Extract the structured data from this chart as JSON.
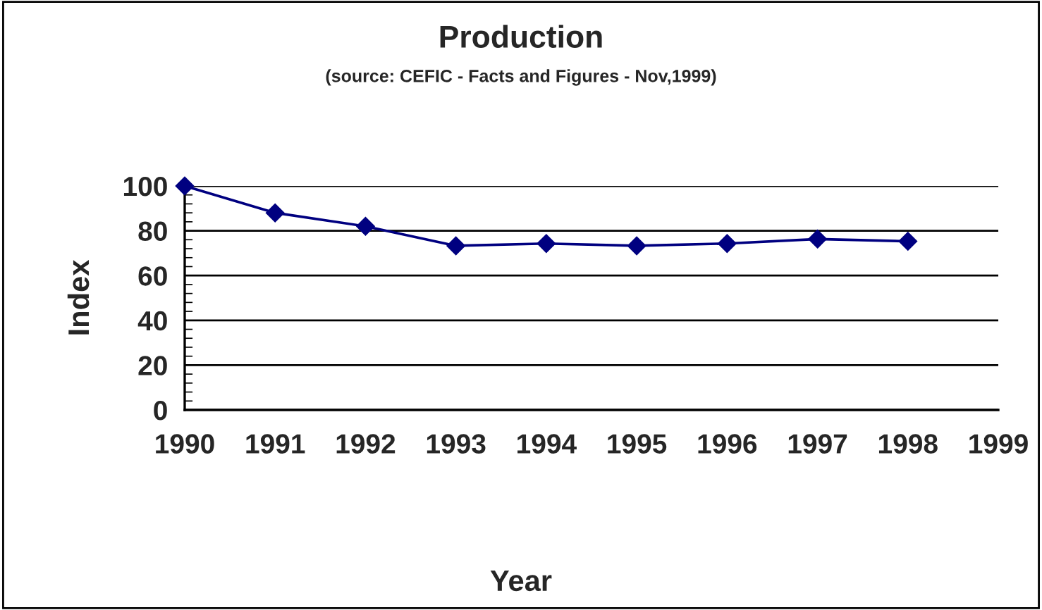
{
  "chart_data": {
    "type": "line",
    "title": "Production",
    "subtitle": "(source: CEFIC - Facts and Figures - Nov,1999)",
    "xlabel": "Year",
    "ylabel": "Index",
    "x": [
      1990,
      1991,
      1992,
      1993,
      1994,
      1995,
      1996,
      1997,
      1998
    ],
    "series": [
      {
        "color": "#000080",
        "values": [
          100,
          88,
          82,
          73.3,
          74.3,
          73.3,
          74.3,
          76.3,
          75.3
        ]
      }
    ],
    "xlim": [
      1990,
      1999
    ],
    "xticks": [
      1990,
      1991,
      1992,
      1993,
      1994,
      1995,
      1996,
      1997,
      1998,
      1999
    ],
    "ylim": [
      0,
      100
    ],
    "yticks": [
      0,
      20,
      40,
      60,
      80,
      100
    ],
    "grid": "y",
    "marker": "diamond",
    "line_style": "solid",
    "legend": false
  }
}
